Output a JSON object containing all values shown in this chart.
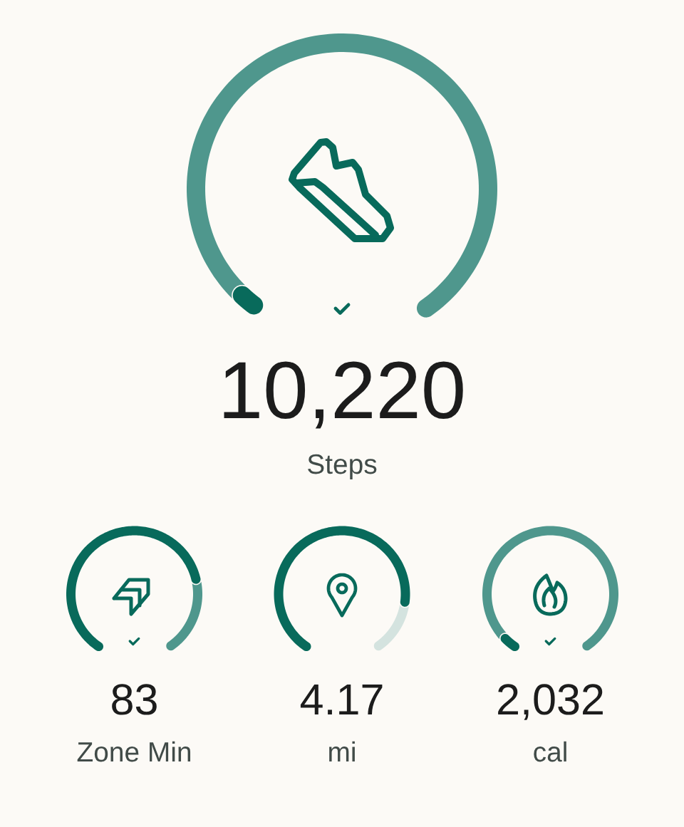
{
  "chart_data": [
    {
      "type": "donut",
      "categories": [
        null,
        null
      ],
      "values": [
        4,
        96
      ],
      "colors": [
        "#086a5b",
        "#4f978d"
      ],
      "annotations": [
        "10,220",
        "Steps"
      ]
    },
    {
      "type": "donut",
      "categories": [
        null,
        null
      ],
      "values": [
        77,
        23
      ],
      "colors": [
        "#086a5b",
        "#4f978d"
      ],
      "annotations": [
        "83",
        "Zone Min"
      ]
    },
    {
      "type": "donut",
      "categories": [
        null,
        null
      ],
      "values": [
        84,
        16
      ],
      "colors": [
        "#086a5b",
        "#d4e3df"
      ],
      "annotations": [
        "4.17",
        "mi"
      ]
    },
    {
      "type": "donut",
      "categories": [
        null,
        null
      ],
      "values": [
        6,
        94
      ],
      "colors": [
        "#086a5b",
        "#4f978d"
      ],
      "annotations": [
        "2,032",
        "cal"
      ]
    }
  ]
}
